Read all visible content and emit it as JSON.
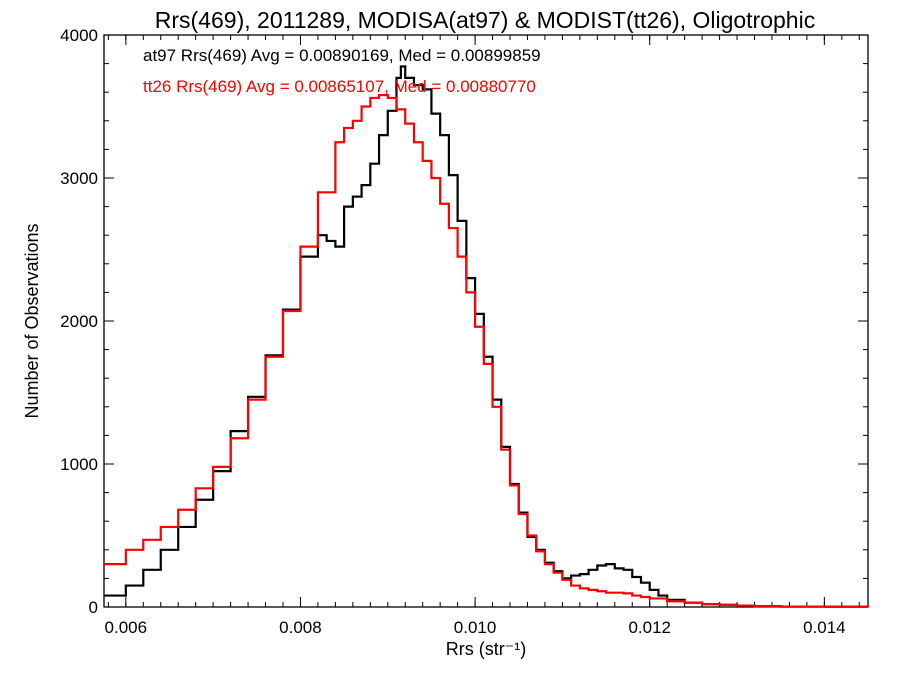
{
  "chart_data": {
    "type": "line",
    "title": "Rrs(469), 2011289, MODISA(at97) & MODIST(tt26), Oligotrophic",
    "xlabel": "Rrs (str⁻¹)",
    "ylabel": "Number of Observations",
    "xlim": [
      0.00575,
      0.0145
    ],
    "ylim": [
      0,
      4000
    ],
    "xticks": [
      "0.006",
      "0.008",
      "0.010",
      "0.012",
      "0.014"
    ],
    "yticks": [
      "0",
      "1000",
      "2000",
      "3000",
      "4000"
    ],
    "grid": false,
    "legend_placement": "top-left",
    "series": [
      {
        "name": "at97",
        "label": "at97 Rrs(469) Avg = 0.00890169, Med = 0.00899859",
        "color": "#000000",
        "x": [
          0.00575,
          0.006,
          0.0062,
          0.0064,
          0.0066,
          0.0068,
          0.007,
          0.0072,
          0.0074,
          0.0076,
          0.0078,
          0.008,
          0.0082,
          0.0083,
          0.0084,
          0.0085,
          0.0086,
          0.0087,
          0.0088,
          0.0089,
          0.009,
          0.0091,
          0.00915,
          0.0092,
          0.0093,
          0.0094,
          0.0095,
          0.0096,
          0.0097,
          0.0098,
          0.0099,
          0.01,
          0.0101,
          0.0102,
          0.0103,
          0.0104,
          0.0105,
          0.0106,
          0.0107,
          0.0108,
          0.0109,
          0.011,
          0.0111,
          0.0112,
          0.0113,
          0.0114,
          0.0115,
          0.0116,
          0.0117,
          0.0118,
          0.0119,
          0.012,
          0.0121,
          0.0122,
          0.0124,
          0.0126,
          0.0128,
          0.013,
          0.0132,
          0.0135,
          0.014,
          0.0145
        ],
        "values": [
          80,
          150,
          260,
          400,
          560,
          750,
          950,
          1230,
          1470,
          1760,
          2080,
          2450,
          2600,
          2560,
          2520,
          2800,
          2870,
          2950,
          3100,
          3300,
          3470,
          3700,
          3780,
          3700,
          3650,
          3620,
          3450,
          3300,
          3020,
          2700,
          2300,
          2050,
          1750,
          1450,
          1120,
          860,
          660,
          490,
          400,
          310,
          250,
          200,
          220,
          230,
          260,
          290,
          300,
          270,
          260,
          210,
          170,
          120,
          80,
          50,
          30,
          20,
          15,
          10,
          5,
          3,
          2,
          0
        ]
      },
      {
        "name": "tt26",
        "label": "tt26 Rrs(469) Avg = 0.00865107, Med = 0.00880770",
        "color": "#ff0000",
        "x": [
          0.00575,
          0.006,
          0.0062,
          0.0064,
          0.0066,
          0.0068,
          0.007,
          0.0072,
          0.0074,
          0.0076,
          0.0078,
          0.008,
          0.0082,
          0.0084,
          0.0085,
          0.0086,
          0.0087,
          0.0088,
          0.0089,
          0.009,
          0.0091,
          0.0092,
          0.0093,
          0.0094,
          0.0095,
          0.0096,
          0.0097,
          0.0098,
          0.0099,
          0.01,
          0.0101,
          0.0102,
          0.0103,
          0.0104,
          0.0105,
          0.0106,
          0.0107,
          0.0108,
          0.0109,
          0.011,
          0.0111,
          0.0112,
          0.0113,
          0.0114,
          0.0115,
          0.0116,
          0.0117,
          0.0118,
          0.0119,
          0.012,
          0.0122,
          0.0124,
          0.0126,
          0.0128,
          0.013,
          0.0132,
          0.0135,
          0.014,
          0.0145
        ],
        "values": [
          300,
          400,
          470,
          560,
          680,
          830,
          980,
          1180,
          1450,
          1750,
          2070,
          2520,
          2900,
          3250,
          3350,
          3400,
          3500,
          3560,
          3580,
          3560,
          3480,
          3380,
          3250,
          3120,
          3000,
          2820,
          2650,
          2450,
          2200,
          1960,
          1700,
          1400,
          1100,
          850,
          650,
          500,
          390,
          300,
          240,
          190,
          150,
          130,
          120,
          110,
          100,
          100,
          95,
          80,
          70,
          60,
          40,
          30,
          20,
          15,
          10,
          5,
          3,
          2,
          0
        ]
      }
    ]
  }
}
